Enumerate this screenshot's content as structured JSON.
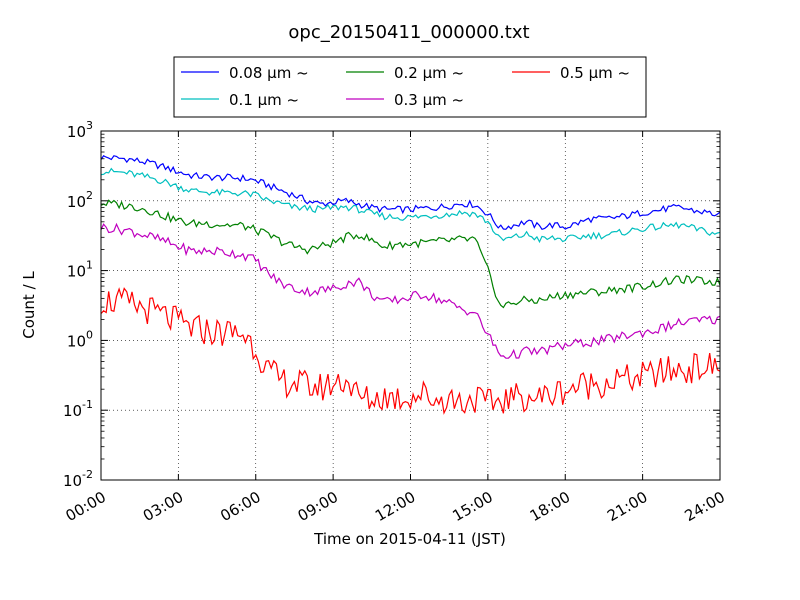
{
  "chart_data": {
    "type": "line",
    "title": "opc_20150411_000000.txt",
    "xlabel": "Time on 2015-04-11 (JST)",
    "ylabel": "Count / L",
    "y_scale": "log",
    "ylim": [
      0.01,
      1000
    ],
    "xlim": [
      "00:00",
      "24:00"
    ],
    "x_ticks": [
      "00:00",
      "03:00",
      "06:00",
      "09:00",
      "12:00",
      "15:00",
      "18:00",
      "21:00",
      "24:00"
    ],
    "y_ticks": [
      {
        "base": "10",
        "exp": "-2"
      },
      {
        "base": "10",
        "exp": "-1"
      },
      {
        "base": "10",
        "exp": "0"
      },
      {
        "base": "10",
        "exp": "1"
      },
      {
        "base": "10",
        "exp": "2"
      },
      {
        "base": "10",
        "exp": "3"
      }
    ],
    "grid": true,
    "legend_position": "top-center, outside plot",
    "x_hours": [
      0.0,
      0.5,
      1.0,
      1.5,
      2.0,
      2.5,
      3.0,
      3.5,
      4.0,
      4.5,
      5.0,
      5.5,
      6.0,
      6.5,
      7.0,
      7.5,
      8.0,
      8.5,
      9.0,
      9.5,
      10.0,
      10.5,
      11.0,
      11.5,
      12.0,
      12.5,
      13.0,
      13.5,
      14.0,
      14.5,
      15.0,
      15.5,
      16.0,
      16.5,
      17.0,
      17.5,
      18.0,
      18.5,
      19.0,
      19.5,
      20.0,
      20.5,
      21.0,
      21.5,
      22.0,
      22.5,
      23.0,
      23.5,
      24.0
    ],
    "series": [
      {
        "name": "0.08 μm ~",
        "color": "#0000ff",
        "values": [
          420,
          410,
          400,
          370,
          340,
          300,
          260,
          230,
          220,
          215,
          215,
          210,
          195,
          165,
          140,
          120,
          100,
          90,
          95,
          100,
          90,
          80,
          75,
          75,
          75,
          78,
          80,
          85,
          92,
          88,
          65,
          40,
          45,
          50,
          42,
          45,
          42,
          48,
          55,
          55,
          58,
          62,
          68,
          72,
          78,
          80,
          72,
          68,
          62
        ]
      },
      {
        "name": "0.1 μm ~",
        "color": "#00bfbf",
        "values": [
          265,
          260,
          250,
          230,
          210,
          185,
          160,
          140,
          135,
          130,
          130,
          128,
          120,
          100,
          90,
          80,
          78,
          75,
          80,
          82,
          75,
          65,
          60,
          58,
          58,
          60,
          62,
          64,
          68,
          65,
          50,
          27,
          30,
          33,
          28,
          29,
          28,
          30,
          32,
          32,
          34,
          37,
          40,
          42,
          44,
          45,
          40,
          36,
          33
        ]
      },
      {
        "name": "0.2 μm ~",
        "color": "#008000",
        "values": [
          92,
          90,
          85,
          80,
          70,
          60,
          52,
          47,
          48,
          46,
          45,
          44,
          38,
          32,
          26,
          22,
          20,
          22,
          25,
          30,
          33,
          27,
          22,
          24,
          24,
          25,
          26,
          27,
          28,
          28,
          10,
          3.0,
          3.5,
          3.8,
          3.7,
          4.2,
          4.5,
          4.7,
          4.9,
          5.0,
          5.4,
          5.6,
          6.0,
          6.5,
          7.0,
          7.5,
          7.2,
          7.0,
          6.8
        ]
      },
      {
        "name": "0.3 μm ~",
        "color": "#bf00bf",
        "values": [
          42,
          40,
          38,
          34,
          30,
          26,
          22,
          19,
          19,
          19,
          18,
          17,
          14,
          9,
          6.5,
          5.5,
          5.0,
          5.2,
          5.5,
          6.5,
          7.0,
          4.5,
          3.5,
          3.8,
          4.2,
          4.6,
          4.0,
          3.4,
          2.8,
          2.5,
          1.2,
          0.6,
          0.62,
          0.7,
          0.68,
          0.78,
          0.85,
          0.9,
          0.95,
          1.0,
          1.1,
          1.2,
          1.3,
          1.4,
          1.6,
          1.8,
          1.9,
          1.95,
          2.0
        ]
      },
      {
        "name": "0.5 μm ~",
        "color": "#ff0000",
        "values": [
          3.8,
          3.6,
          3.4,
          3.0,
          2.6,
          2.2,
          1.8,
          1.5,
          1.4,
          1.3,
          1.3,
          1.25,
          0.8,
          0.35,
          0.26,
          0.25,
          0.22,
          0.21,
          0.24,
          0.28,
          0.15,
          0.14,
          0.16,
          0.15,
          0.16,
          0.17,
          0.14,
          0.15,
          0.13,
          0.15,
          0.12,
          0.14,
          0.15,
          0.16,
          0.15,
          0.17,
          0.2,
          0.22,
          0.24,
          0.25,
          0.27,
          0.28,
          0.3,
          0.33,
          0.36,
          0.38,
          0.4,
          0.42,
          0.4
        ]
      }
    ]
  }
}
